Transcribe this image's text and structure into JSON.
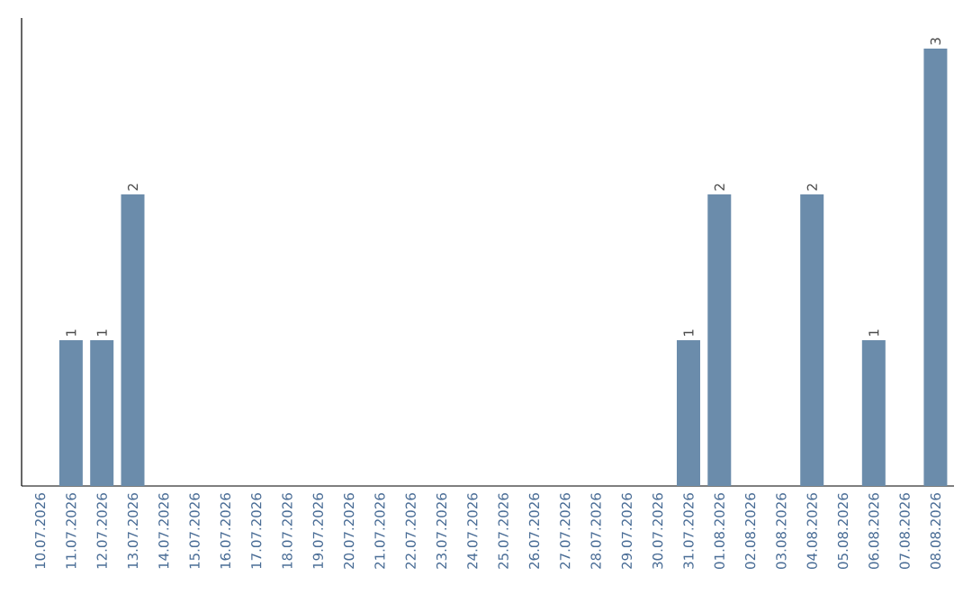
{
  "chart_data": {
    "type": "bar",
    "color": "#6b8cab",
    "categories": [
      "10.07.2026",
      "11.07.2026",
      "12.07.2026",
      "13.07.2026",
      "14.07.2026",
      "15.07.2026",
      "16.07.2026",
      "17.07.2026",
      "18.07.2026",
      "19.07.2026",
      "20.07.2026",
      "21.07.2026",
      "22.07.2026",
      "23.07.2026",
      "24.07.2026",
      "25.07.2026",
      "26.07.2026",
      "27.07.2026",
      "28.07.2026",
      "29.07.2026",
      "30.07.2026",
      "31.07.2026",
      "01.08.2026",
      "02.08.2026",
      "03.08.2026",
      "04.08.2026",
      "05.08.2026",
      "06.08.2026",
      "07.08.2026",
      "08.08.2026"
    ],
    "values": [
      0,
      1,
      1,
      2,
      0,
      0,
      0,
      0,
      0,
      0,
      0,
      0,
      0,
      0,
      0,
      0,
      0,
      0,
      0,
      0,
      0,
      1,
      2,
      0,
      0,
      2,
      0,
      1,
      0,
      3
    ],
    "value_labels": [
      null,
      "1",
      "1",
      "2",
      null,
      null,
      null,
      null,
      null,
      null,
      null,
      null,
      null,
      null,
      null,
      null,
      null,
      null,
      null,
      null,
      null,
      "1",
      "2",
      null,
      null,
      "2",
      null,
      "1",
      null,
      "3"
    ],
    "tick_labels": "x",
    "grid": false
  }
}
